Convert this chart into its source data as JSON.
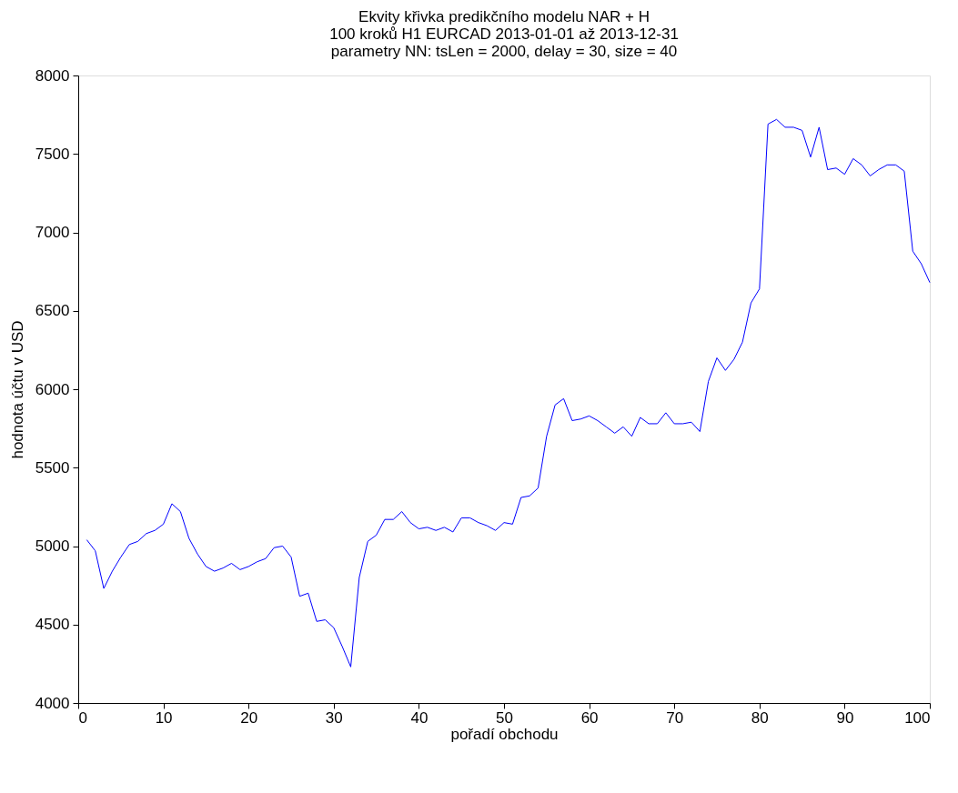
{
  "chart_data": {
    "type": "line",
    "title": [
      "Ekvity křivka predikčního modelu NAR + H",
      "100 kroků H1 EURCAD 2013-01-01 až 2013-12-31",
      "parametry NN: tsLen = 2000, delay = 30, size = 40"
    ],
    "xlabel": "pořadí obchodu",
    "ylabel": "hodnota účtu v USD",
    "x": [
      1,
      2,
      3,
      4,
      5,
      6,
      7,
      8,
      9,
      10,
      11,
      12,
      13,
      14,
      15,
      16,
      17,
      18,
      19,
      20,
      21,
      22,
      23,
      24,
      25,
      26,
      27,
      28,
      29,
      30,
      31,
      32,
      33,
      34,
      35,
      36,
      37,
      38,
      39,
      40,
      41,
      42,
      43,
      44,
      45,
      46,
      47,
      48,
      49,
      50,
      51,
      52,
      53,
      54,
      55,
      56,
      57,
      58,
      59,
      60,
      61,
      62,
      63,
      64,
      65,
      66,
      67,
      68,
      69,
      70,
      71,
      72,
      73,
      74,
      75,
      76,
      77,
      78,
      79,
      80,
      81,
      82,
      83,
      84,
      85,
      86,
      87,
      88,
      89,
      90,
      91,
      92,
      93,
      94,
      95,
      96,
      97,
      98,
      99,
      100
    ],
    "series": [
      {
        "color": "#0000ff",
        "values": [
          5040,
          4970,
          4730,
          4840,
          4930,
          5010,
          5030,
          5080,
          5100,
          5140,
          5270,
          5220,
          5050,
          4950,
          4870,
          4840,
          4860,
          4890,
          4850,
          4870,
          4900,
          4920,
          4990,
          5000,
          4930,
          4680,
          4700,
          4520,
          4530,
          4480,
          4360,
          4230,
          4800,
          5030,
          5070,
          5170,
          5170,
          5220,
          5150,
          5110,
          5120,
          5100,
          5120,
          5090,
          5180,
          5180,
          5150,
          5130,
          5100,
          5150,
          5140,
          5310,
          5320,
          5370,
          5700,
          5900,
          5940,
          5800,
          5810,
          5830,
          5800,
          5760,
          5720,
          5760,
          5700,
          5820,
          5780,
          5780,
          5850,
          5780,
          5780,
          5790,
          5730,
          6050,
          6200,
          6120,
          6190,
          6300,
          6550,
          6640,
          7690,
          7720,
          7670,
          7670,
          7650,
          7480,
          7670,
          7400,
          7410,
          7370,
          7470,
          7430,
          7360,
          7400,
          7430,
          7430,
          7390,
          6880,
          6800,
          6680
        ]
      }
    ],
    "xlim": [
      0,
      100
    ],
    "xticks": [
      0,
      10,
      20,
      30,
      40,
      50,
      60,
      70,
      80,
      90,
      100
    ],
    "ylim": [
      4000,
      8000
    ],
    "yticks": [
      4000,
      4500,
      5000,
      5500,
      6000,
      6500,
      7000,
      7500,
      8000
    ],
    "grid": false,
    "legend": false,
    "marker": "none",
    "line_style": "solid"
  }
}
